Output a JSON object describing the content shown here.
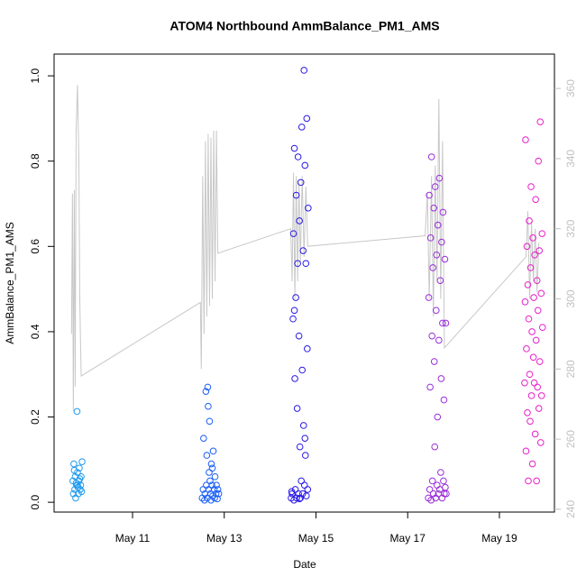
{
  "chart_data": {
    "type": "scatter",
    "title": "ATOM4 Northbound AmmBalance_PM1_AMS",
    "xlabel": "Date",
    "ylabel": "AmmBalance_PM1_AMS",
    "xlim": [
      9.29,
      20.2
    ],
    "ylim": [
      -0.023,
      1.051
    ],
    "y2lim": [
      239.2,
      369.8
    ],
    "xticks": [
      {
        "value": 11,
        "label": "May 11"
      },
      {
        "value": 13,
        "label": "May 13"
      },
      {
        "value": 15,
        "label": "May 15"
      },
      {
        "value": 17,
        "label": "May 17"
      },
      {
        "value": 19,
        "label": "May 19"
      }
    ],
    "yticks": [
      {
        "value": 0,
        "label": "0.0"
      },
      0.2,
      0.4,
      0.6,
      0.8,
      {
        "value": 1,
        "label": "1.0"
      }
    ],
    "y2ticks": [
      240,
      260,
      280,
      300,
      320,
      340,
      360
    ],
    "y2color": "#c0c0c0",
    "series": [
      {
        "type": "line",
        "axis": "y2",
        "color": "#c8c8c8",
        "x": [
          9.67,
          9.69,
          9.71,
          9.73,
          9.75,
          9.77,
          9.8,
          9.83,
          9.85,
          9.88,
          12.48,
          12.5,
          12.53,
          12.56,
          12.59,
          12.62,
          12.65,
          12.68,
          12.71,
          12.74,
          12.77,
          12.8,
          12.83,
          12.86,
          14.45,
          14.48,
          14.51,
          14.54,
          14.57,
          14.6,
          14.63,
          14.66,
          14.7,
          14.74,
          14.78,
          14.82,
          17.38,
          17.43,
          17.47,
          17.52,
          17.56,
          17.6,
          17.64,
          17.68,
          17.72,
          17.76,
          17.8,
          19.58,
          19.62,
          19.66,
          19.7,
          19.74,
          19.78,
          19.82,
          19.86
        ],
        "values": [
          290,
          330,
          268,
          331,
          275,
          348,
          361,
          340,
          300,
          278,
          299,
          280,
          335,
          290,
          345,
          295,
          347,
          298,
          346,
          300,
          348,
          305,
          348,
          313,
          320,
          305,
          336,
          300,
          335,
          305,
          333,
          310,
          335,
          312,
          332,
          315,
          318,
          330,
          300,
          335,
          295,
          338,
          305,
          357,
          300,
          345,
          286,
          312,
          325,
          300,
          322,
          305,
          320,
          302,
          316
        ]
      },
      {
        "color": "#1f9bf0",
        "x": [
          9.7,
          9.72,
          9.74,
          9.75,
          9.76,
          9.78,
          9.79,
          9.8,
          9.82,
          9.83,
          9.84,
          9.86,
          9.87,
          9.88,
          9.9,
          9.71,
          9.77,
          9.81,
          9.85,
          9.89,
          9.73,
          9.8
        ],
        "values": [
          0.05,
          0.09,
          0.03,
          0.06,
          0.01,
          0.04,
          0.213,
          0.07,
          0.02,
          0.05,
          0.08,
          0.03,
          0.04,
          0.06,
          0.095,
          0.02,
          0.045,
          0.035,
          0.055,
          0.025,
          0.075,
          0.04
        ]
      },
      {
        "color": "#1a5ef5",
        "x": [
          12.52,
          12.54,
          12.55,
          12.57,
          12.58,
          12.6,
          12.61,
          12.62,
          12.63,
          12.65,
          12.66,
          12.67,
          12.68,
          12.7,
          12.71,
          12.72,
          12.73,
          12.75,
          12.76,
          12.78,
          12.79,
          12.8,
          12.82,
          12.83,
          12.85,
          12.86,
          12.88,
          12.64,
          12.69,
          12.74
        ],
        "values": [
          0.01,
          0.03,
          0.15,
          0.005,
          0.02,
          0.26,
          0.04,
          0.11,
          0.01,
          0.225,
          0.03,
          0.07,
          0.19,
          0.02,
          0.005,
          0.09,
          0.04,
          0.015,
          0.12,
          0.03,
          0.01,
          0.06,
          0.02,
          0.04,
          0.008,
          0.03,
          0.02,
          0.27,
          0.05,
          0.08
        ]
      },
      {
        "color": "#2a1ae8",
        "x": [
          14.46,
          14.48,
          14.5,
          14.51,
          14.52,
          14.53,
          14.54,
          14.55,
          14.56,
          14.57,
          14.58,
          14.59,
          14.6,
          14.61,
          14.62,
          14.63,
          14.64,
          14.65,
          14.66,
          14.67,
          14.68,
          14.69,
          14.7,
          14.71,
          14.72,
          14.73,
          14.74,
          14.75,
          14.76,
          14.77,
          14.78,
          14.79,
          14.8,
          14.81,
          14.82,
          14.83,
          14.47,
          14.53,
          14.64,
          14.76
        ],
        "values": [
          0.01,
          0.02,
          0.43,
          0.63,
          0.005,
          0.83,
          0.29,
          0.03,
          0.48,
          0.72,
          0.01,
          0.22,
          0.56,
          0.81,
          0.02,
          0.39,
          0.66,
          0.13,
          0.01,
          0.75,
          0.05,
          0.88,
          0.31,
          0.02,
          0.59,
          0.18,
          1.013,
          0.04,
          0.79,
          0.11,
          0.56,
          0.015,
          0.9,
          0.36,
          0.03,
          0.69,
          0.025,
          0.45,
          0.008,
          0.15
        ]
      },
      {
        "color": "#9a2ed8",
        "x": [
          17.45,
          17.46,
          17.47,
          17.48,
          17.49,
          17.5,
          17.51,
          17.52,
          17.53,
          17.54,
          17.55,
          17.56,
          17.57,
          17.58,
          17.59,
          17.6,
          17.61,
          17.62,
          17.63,
          17.64,
          17.65,
          17.66,
          17.67,
          17.68,
          17.69,
          17.7,
          17.71,
          17.72,
          17.73,
          17.74,
          17.75,
          17.76,
          17.77,
          17.78,
          17.79,
          17.8,
          17.81,
          17.82,
          17.83,
          17.84
        ],
        "values": [
          0.01,
          0.48,
          0.72,
          0.03,
          0.27,
          0.62,
          0.005,
          0.81,
          0.39,
          0.05,
          0.55,
          0.02,
          0.69,
          0.33,
          0.13,
          0.74,
          0.01,
          0.45,
          0.58,
          0.04,
          0.2,
          0.65,
          0.02,
          0.38,
          0.76,
          0.03,
          0.52,
          0.07,
          0.29,
          0.61,
          0.01,
          0.42,
          0.68,
          0.05,
          0.24,
          0.02,
          0.57,
          0.035,
          0.42,
          0.02
        ]
      },
      {
        "color": "#e620c8",
        "x": [
          19.55,
          19.56,
          19.57,
          19.58,
          19.59,
          19.6,
          19.61,
          19.62,
          19.63,
          19.64,
          19.65,
          19.66,
          19.67,
          19.68,
          19.69,
          19.7,
          19.71,
          19.72,
          19.73,
          19.74,
          19.75,
          19.76,
          19.77,
          19.78,
          19.79,
          19.8,
          19.81,
          19.82,
          19.83,
          19.84,
          19.85,
          19.86,
          19.87,
          19.88,
          19.89,
          19.9,
          19.91,
          19.92,
          19.93,
          19.94
        ],
        "values": [
          0.28,
          0.47,
          0.85,
          0.12,
          0.36,
          0.6,
          0.21,
          0.51,
          0.05,
          0.43,
          0.66,
          0.3,
          0.19,
          0.55,
          0.74,
          0.25,
          0.4,
          0.09,
          0.62,
          0.34,
          0.48,
          0.28,
          0.58,
          0.16,
          0.71,
          0.38,
          0.05,
          0.52,
          0.27,
          0.45,
          0.8,
          0.22,
          0.59,
          0.33,
          0.892,
          0.14,
          0.49,
          0.25,
          0.63,
          0.41
        ]
      }
    ]
  }
}
